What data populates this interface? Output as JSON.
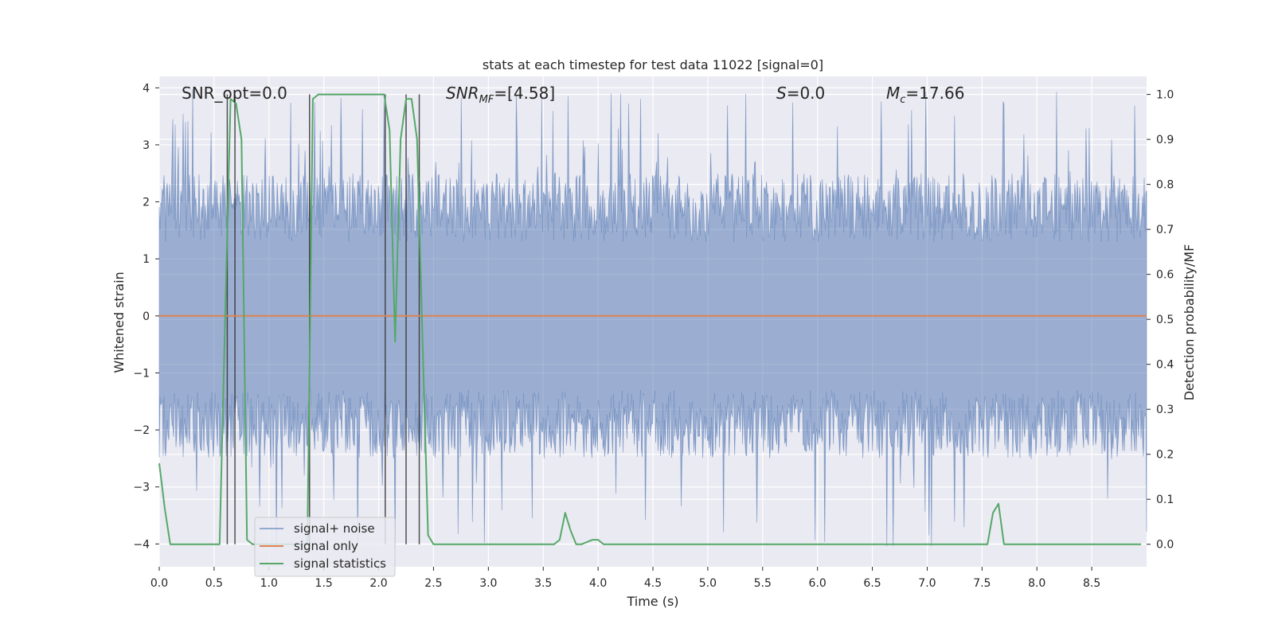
{
  "chart_data": {
    "type": "line",
    "title": "stats at each timestep for test data 11022 [signal=0]",
    "xlabel": "Time (s)",
    "ylabel_left": "Whitened strain",
    "ylabel_right": "Detection probability/MF",
    "xlim": [
      0,
      9.0
    ],
    "ylim_left": [
      -4.4,
      4.2
    ],
    "ylim_right": [
      -0.05,
      1.04
    ],
    "x_ticks": [
      "0.0",
      "0.5",
      "1.0",
      "1.5",
      "2.0",
      "2.5",
      "3.0",
      "3.5",
      "4.0",
      "4.5",
      "5.0",
      "5.5",
      "6.0",
      "6.5",
      "7.0",
      "7.5",
      "8.0",
      "8.5"
    ],
    "y_left_ticks": [
      "−4",
      "−3",
      "−2",
      "−1",
      "0",
      "1",
      "2",
      "3",
      "4"
    ],
    "y_right_ticks": [
      "0.0",
      "0.1",
      "0.2",
      "0.3",
      "0.4",
      "0.5",
      "0.6",
      "0.7",
      "0.8",
      "0.9",
      "1.0"
    ],
    "grid": true,
    "legend_position": "lower-left",
    "annotations": [
      {
        "prefix": "SNR_opt=0.0",
        "sub": "",
        "suffix": "",
        "italic": false
      },
      {
        "prefix": "SNR",
        "sub": "MF",
        "suffix": "=[4.58]",
        "italic": true
      },
      {
        "prefix": "S",
        "sub": "",
        "suffix": "=0.0",
        "italic": true
      },
      {
        "prefix": "M",
        "sub": "c",
        "suffix": "=17.66",
        "italic": true
      }
    ],
    "series": [
      {
        "name": "signal+ noise",
        "color": "#4c72b0",
        "axis": "left",
        "kind": "noise",
        "envelope": {
          "upper_typical": 1.9,
          "lower_typical": -1.9,
          "max": 4.0,
          "min": -4.1
        }
      },
      {
        "name": "signal only",
        "color": "#dd8452",
        "axis": "left",
        "kind": "line",
        "x": [
          0,
          9.0
        ],
        "y": [
          0,
          0
        ]
      },
      {
        "name": "signal statistics",
        "color": "#55a868",
        "axis": "right",
        "kind": "line",
        "x": [
          0.0,
          0.05,
          0.1,
          0.15,
          0.2,
          0.55,
          0.6,
          0.65,
          0.7,
          0.75,
          0.8,
          0.85,
          1.35,
          1.4,
          1.45,
          1.5,
          2.0,
          2.05,
          2.1,
          2.15,
          2.2,
          2.25,
          2.3,
          2.35,
          2.4,
          2.45,
          2.5,
          2.55,
          3.6,
          3.65,
          3.7,
          3.75,
          3.8,
          3.85,
          3.95,
          4.0,
          4.05,
          4.1,
          7.5,
          7.55,
          7.6,
          7.65,
          7.7,
          7.75,
          7.8,
          8.95
        ],
        "y": [
          0.18,
          0.08,
          0.0,
          0.0,
          0.0,
          0.0,
          0.5,
          0.99,
          0.98,
          0.9,
          0.01,
          0.0,
          0.0,
          0.99,
          1.0,
          1.0,
          1.0,
          1.0,
          0.92,
          0.45,
          0.9,
          0.99,
          0.99,
          0.9,
          0.45,
          0.02,
          0.0,
          0.0,
          0.0,
          0.01,
          0.07,
          0.03,
          0.0,
          0.0,
          0.01,
          0.01,
          0.0,
          0.0,
          0.0,
          0.0,
          0.07,
          0.09,
          0.0,
          0.0,
          0.0,
          0.0
        ]
      }
    ],
    "event_markers_x": [
      0.62,
      0.69,
      1.37,
      2.06,
      2.25,
      2.37
    ]
  }
}
